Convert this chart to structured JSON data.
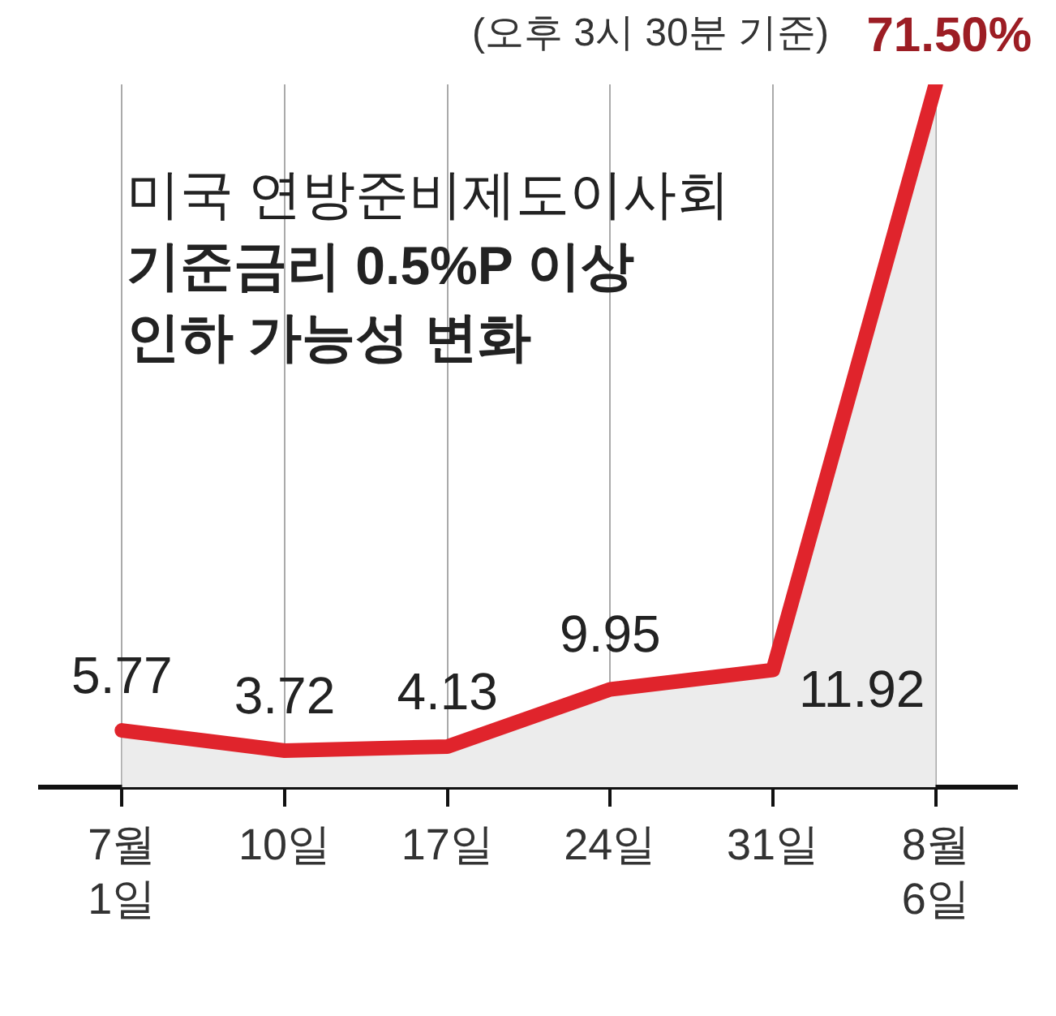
{
  "chart_data": {
    "type": "area",
    "title": "미국 연방준비제도이사회\n기준금리 0.5%P 이상\n인하 가능성 변화",
    "categories": [
      "7월\n1일",
      "10일",
      "17일",
      "24일",
      "31일",
      "8월\n6일"
    ],
    "series": [
      {
        "color": "#e0242c",
        "values": [
          5.77,
          3.72,
          4.13,
          9.95,
          11.92,
          71.5
        ],
        "value_labels": [
          "5.77",
          "3.72",
          "4.13",
          "9.95",
          "11.92",
          "71.50%"
        ]
      }
    ],
    "annotations": [
      "(오후 3시 30분 기준)"
    ],
    "grid": "x",
    "line_style": "solid",
    "marker": "none",
    "legend": false
  }
}
